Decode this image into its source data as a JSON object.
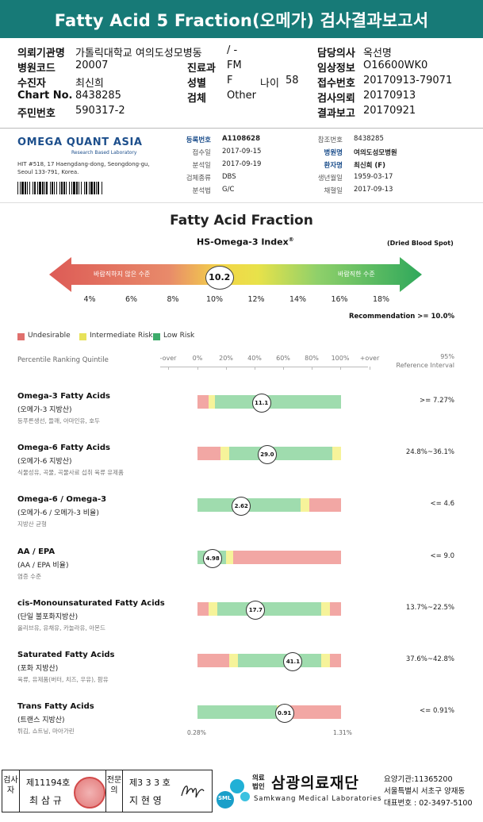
{
  "title": "Fatty Acid 5 Fraction(오메가) 검사결과보고서",
  "header": {
    "left": [
      {
        "label": "의뢰기관명",
        "value": "가톨릭대학교 여의도성모병동"
      },
      {
        "label": "병원코드",
        "value": "20007"
      },
      {
        "label": "수진자",
        "value": "최신희"
      },
      {
        "label": "Chart No.",
        "value": "8438285"
      },
      {
        "label": "주민번호",
        "value": "590317-2"
      }
    ],
    "mid": [
      {
        "label": "",
        "value": "/ -"
      },
      {
        "label": "진료과",
        "value": "FM"
      },
      {
        "label": "성별",
        "value": "F"
      },
      {
        "label": "검체",
        "value": "Other"
      }
    ],
    "age_label": "나이",
    "age_value": "58",
    "right": [
      {
        "label": "담당의사",
        "value": "옥선명"
      },
      {
        "label": "임상정보",
        "value": "O16600WK0"
      },
      {
        "label": "접수번호",
        "value": "20170913-79071"
      },
      {
        "label": "검사의뢰",
        "value": "20170913"
      },
      {
        "label": "결과보고",
        "value": "20170921"
      }
    ]
  },
  "lab": {
    "name": "OMEGA QUANT ASIA",
    "tagline": "Research Based Laboratory",
    "address1": "HIT #518, 17 Haengdang-dong, Seongdong-gu,",
    "address2": "Seoul 133-791, Korea.",
    "info_left": [
      {
        "label": "등록번호",
        "value": "A1108628"
      },
      {
        "label": "접수일",
        "value": "2017-09-15"
      },
      {
        "label": "분석일",
        "value": "2017-09-19"
      },
      {
        "label": "검체종류",
        "value": "DBS"
      },
      {
        "label": "분석법",
        "value": "G/C"
      }
    ],
    "info_right": [
      {
        "label": "참조번호",
        "value": "8438285"
      },
      {
        "label": "병원명",
        "value": "여의도성모병원"
      },
      {
        "label": "환자명",
        "value": "최신희 (F)"
      },
      {
        "label": "생년월일",
        "value": "1959-03-17"
      },
      {
        "label": "채혈일",
        "value": "2017-09-13"
      }
    ]
  },
  "index": {
    "section_title": "Fatty Acid Fraction",
    "subtitle": "HS-Omega-3 Index",
    "subtitle_sup": "®",
    "sample": "(Dried Blood Spot)",
    "arrow_left_text": "바람직하지 않은 수준",
    "arrow_right_text": "바람직한 수준",
    "value": 10.2,
    "value_label": "10.2",
    "scale": [
      "4%",
      "6%",
      "8%",
      "10%",
      "12%",
      "14%",
      "16%",
      "18%"
    ],
    "recommendation": "Recommendation  >= 10.0%"
  },
  "legend": [
    {
      "label": "Undesirable",
      "color": "#e0706d"
    },
    {
      "label": "Intermediate Risk",
      "color": "#e8e25a"
    },
    {
      "label": "Low Risk",
      "color": "#3dab6a"
    }
  ],
  "quintile": {
    "label": "Percentile Ranking Quintile",
    "ticks": [
      "-over",
      "0%",
      "20%",
      "40%",
      "60%",
      "80%",
      "100%",
      "+over"
    ],
    "ref_line1": "95%",
    "ref_line2": "Reference Interval"
  },
  "colors": {
    "red": "#f2a7a4",
    "yellow": "#f6f39a",
    "green": "#9fdcae",
    "title_bg": "#177a77"
  },
  "rows": [
    {
      "name": "Omega-3 Fatty Acids",
      "sub": "(오메가-3 지방산)",
      "desc": "등푸른생선, 들깨, 아마인유, 호두",
      "ref": ">= 7.27%",
      "value": "11.1",
      "pos": 0.44,
      "segs": [
        [
          "red",
          0,
          0.08
        ],
        [
          "yellow",
          0.08,
          0.12
        ],
        [
          "green",
          0.12,
          1
        ]
      ]
    },
    {
      "name": "Omega-6 Fatty Acids",
      "sub": "(오메가-6 지방산)",
      "desc": "식물성유, 곡물, 곡물사료 섭취 육류 유제품",
      "ref": "24.8%~36.1%",
      "value": "29.0",
      "pos": 0.48,
      "segs": [
        [
          "red",
          0,
          0.16
        ],
        [
          "yellow",
          0.16,
          0.22
        ],
        [
          "green",
          0.22,
          0.94
        ],
        [
          "yellow",
          0.94,
          1
        ]
      ]
    },
    {
      "name": "Omega-6 / Omega-3",
      "sub": "(오메가-6 / 오메가-3 비율)",
      "desc": "지방산 균형",
      "ref": "<= 4.6",
      "value": "2.62",
      "pos": 0.3,
      "segs": [
        [
          "green",
          0,
          0.72
        ],
        [
          "yellow",
          0.72,
          0.78
        ],
        [
          "red",
          0.78,
          1
        ]
      ]
    },
    {
      "name": "AA / EPA",
      "sub": "(AA / EPA 비율)",
      "desc": "염증 수준",
      "ref": "<= 9.0",
      "value": "4.98",
      "pos": 0.1,
      "segs": [
        [
          "green",
          0,
          0.2
        ],
        [
          "yellow",
          0.2,
          0.25
        ],
        [
          "red",
          0.25,
          1
        ]
      ]
    },
    {
      "name": "cis-Monounsaturated Fatty Acids",
      "sub": "(단일 불포화지방산)",
      "desc": "올리브유, 유채유, 카놀라유, 아몬드",
      "ref": "13.7%~22.5%",
      "value": "17.7",
      "pos": 0.4,
      "segs": [
        [
          "red",
          0,
          0.08
        ],
        [
          "yellow",
          0.08,
          0.14
        ],
        [
          "green",
          0.14,
          0.86
        ],
        [
          "yellow",
          0.86,
          0.92
        ],
        [
          "red",
          0.92,
          1
        ]
      ]
    },
    {
      "name": "Saturated Fatty Acids",
      "sub": "(포화 지방산)",
      "desc": "육류, 유제품(버터, 치즈, 우유), 팜유",
      "ref": "37.6%~42.8%",
      "value": "41.1",
      "pos": 0.66,
      "segs": [
        [
          "red",
          0,
          0.22
        ],
        [
          "yellow",
          0.22,
          0.28
        ],
        [
          "green",
          0.28,
          0.86
        ],
        [
          "yellow",
          0.86,
          0.92
        ],
        [
          "red",
          0.92,
          1
        ]
      ]
    },
    {
      "name": "Trans Fatty Acids",
      "sub": "(트랜스 지방산)",
      "desc": "튀김, 쇼트닝, 마아가린",
      "ref": "<= 0.91%",
      "value": "0.91",
      "pos": 0.6,
      "segs": [
        [
          "green",
          0,
          0.55
        ],
        [
          "yellow",
          0.55,
          0.62
        ],
        [
          "red",
          0.62,
          1
        ]
      ]
    }
  ],
  "trans_scale": {
    "min": "0.28%",
    "max": "1.31%"
  },
  "footer": {
    "verify_label": "검사자",
    "verify_no": "제11194호",
    "verify_name": "최 삼 규",
    "spec_label": "전문의",
    "spec_no": "제3 3 3 호",
    "spec_name": "지 현 영",
    "sml": "SML",
    "org_type": "의료법인",
    "org_name": "삼광의료재단",
    "org_en": "Samkwang Medical Laboratories",
    "care_no": "요양기관:11365200",
    "address": "서울특별시 서초구 양재동",
    "phone": "대표번호 : 02-3497-5100"
  }
}
